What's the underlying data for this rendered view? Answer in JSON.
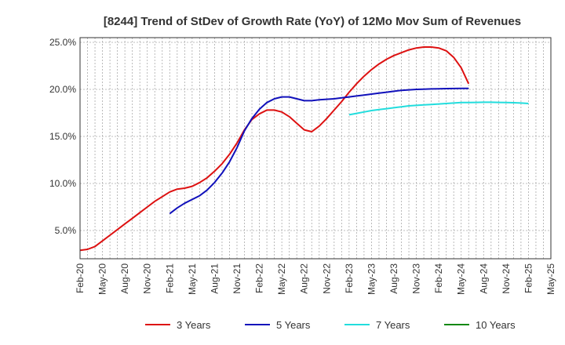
{
  "chart_data": {
    "type": "line",
    "title": "[8244]  Trend of StDev of Growth Rate (YoY) of 12Mo Mov Sum of Revenues",
    "xlabel": "",
    "ylabel": "",
    "x_ticks": [
      "Feb-20",
      "May-20",
      "Aug-20",
      "Nov-20",
      "Feb-21",
      "May-21",
      "Aug-21",
      "Nov-21",
      "Feb-22",
      "May-22",
      "Aug-22",
      "Nov-22",
      "Feb-23",
      "May-23",
      "Aug-23",
      "Nov-23",
      "Feb-24",
      "May-24",
      "Aug-24",
      "Nov-24",
      "Feb-25",
      "May-25"
    ],
    "y_ticks": [
      5.0,
      10.0,
      15.0,
      20.0,
      25.0
    ],
    "y_tick_labels": [
      "5.0%",
      "10.0%",
      "15.0%",
      "20.0%",
      "25.0%"
    ],
    "ylim": [
      2.0,
      25.5
    ],
    "xlim_months": [
      0,
      63
    ],
    "grid": true,
    "legend_position": "bottom",
    "series": [
      {
        "name": "3 Years",
        "color": "#dd1111",
        "x_months": [
          0,
          1,
          2,
          3,
          4,
          5,
          6,
          7,
          8,
          9,
          10,
          11,
          12,
          13,
          14,
          15,
          16,
          17,
          18,
          19,
          20,
          21,
          22,
          23,
          24,
          25,
          26,
          27,
          28,
          29,
          30,
          31,
          32,
          33,
          34,
          35,
          36,
          37,
          38,
          39,
          40,
          41,
          42,
          43,
          44,
          45,
          46,
          47,
          48,
          49,
          50,
          51,
          52,
          53,
          54,
          55,
          56,
          57,
          58,
          59,
          60
        ],
        "values": [
          2.9,
          3.0,
          3.3,
          3.9,
          4.5,
          5.1,
          5.7,
          6.3,
          6.9,
          7.5,
          8.1,
          8.6,
          9.1,
          9.4,
          9.5,
          9.7,
          10.1,
          10.6,
          11.3,
          12.1,
          13.1,
          14.3,
          15.7,
          16.8,
          17.4,
          17.8,
          17.8,
          17.6,
          17.1,
          16.4,
          15.7,
          15.5,
          16.1,
          16.9,
          17.8,
          18.7,
          19.7,
          20.6,
          21.4,
          22.1,
          22.7,
          23.2,
          23.6,
          23.9,
          24.2,
          24.4,
          24.5,
          24.5,
          24.4,
          24.1,
          23.4,
          22.3,
          20.6,
          null,
          null,
          null,
          null,
          null,
          null,
          null,
          null
        ]
      },
      {
        "name": "5 Years",
        "color": "#1111bb",
        "x_months": [
          12,
          13,
          14,
          15,
          16,
          17,
          18,
          19,
          20,
          21,
          22,
          23,
          24,
          25,
          26,
          27,
          28,
          29,
          30,
          31,
          32,
          33,
          34,
          35,
          36,
          37,
          38,
          39,
          40,
          41,
          42,
          43,
          44,
          45,
          46,
          47,
          48,
          49,
          50,
          51,
          52
        ],
        "values": [
          6.8,
          7.4,
          7.9,
          8.3,
          8.7,
          9.3,
          10.1,
          11.1,
          12.3,
          13.8,
          15.6,
          16.9,
          17.9,
          18.6,
          19.0,
          19.2,
          19.2,
          19.0,
          18.8,
          18.8,
          18.9,
          18.95,
          19.0,
          19.1,
          19.2,
          19.3,
          19.4,
          19.5,
          19.6,
          19.7,
          19.8,
          19.9,
          19.95,
          20.0,
          20.02,
          20.05,
          20.07,
          20.08,
          20.09,
          20.1,
          20.1
        ]
      },
      {
        "name": "7 Years",
        "color": "#22dddd",
        "x_months": [
          36,
          37,
          38,
          39,
          40,
          41,
          42,
          43,
          44,
          45,
          46,
          47,
          48,
          49,
          50,
          51,
          52,
          53,
          54,
          55,
          56,
          57,
          58,
          59,
          60
        ],
        "values": [
          17.3,
          17.45,
          17.6,
          17.75,
          17.85,
          17.95,
          18.05,
          18.15,
          18.25,
          18.3,
          18.35,
          18.4,
          18.45,
          18.5,
          18.55,
          18.6,
          18.6,
          18.62,
          18.63,
          18.63,
          18.62,
          18.6,
          18.58,
          18.55,
          18.5
        ]
      },
      {
        "name": "10 Years",
        "color": "#118811",
        "x_months": [],
        "values": []
      }
    ]
  }
}
